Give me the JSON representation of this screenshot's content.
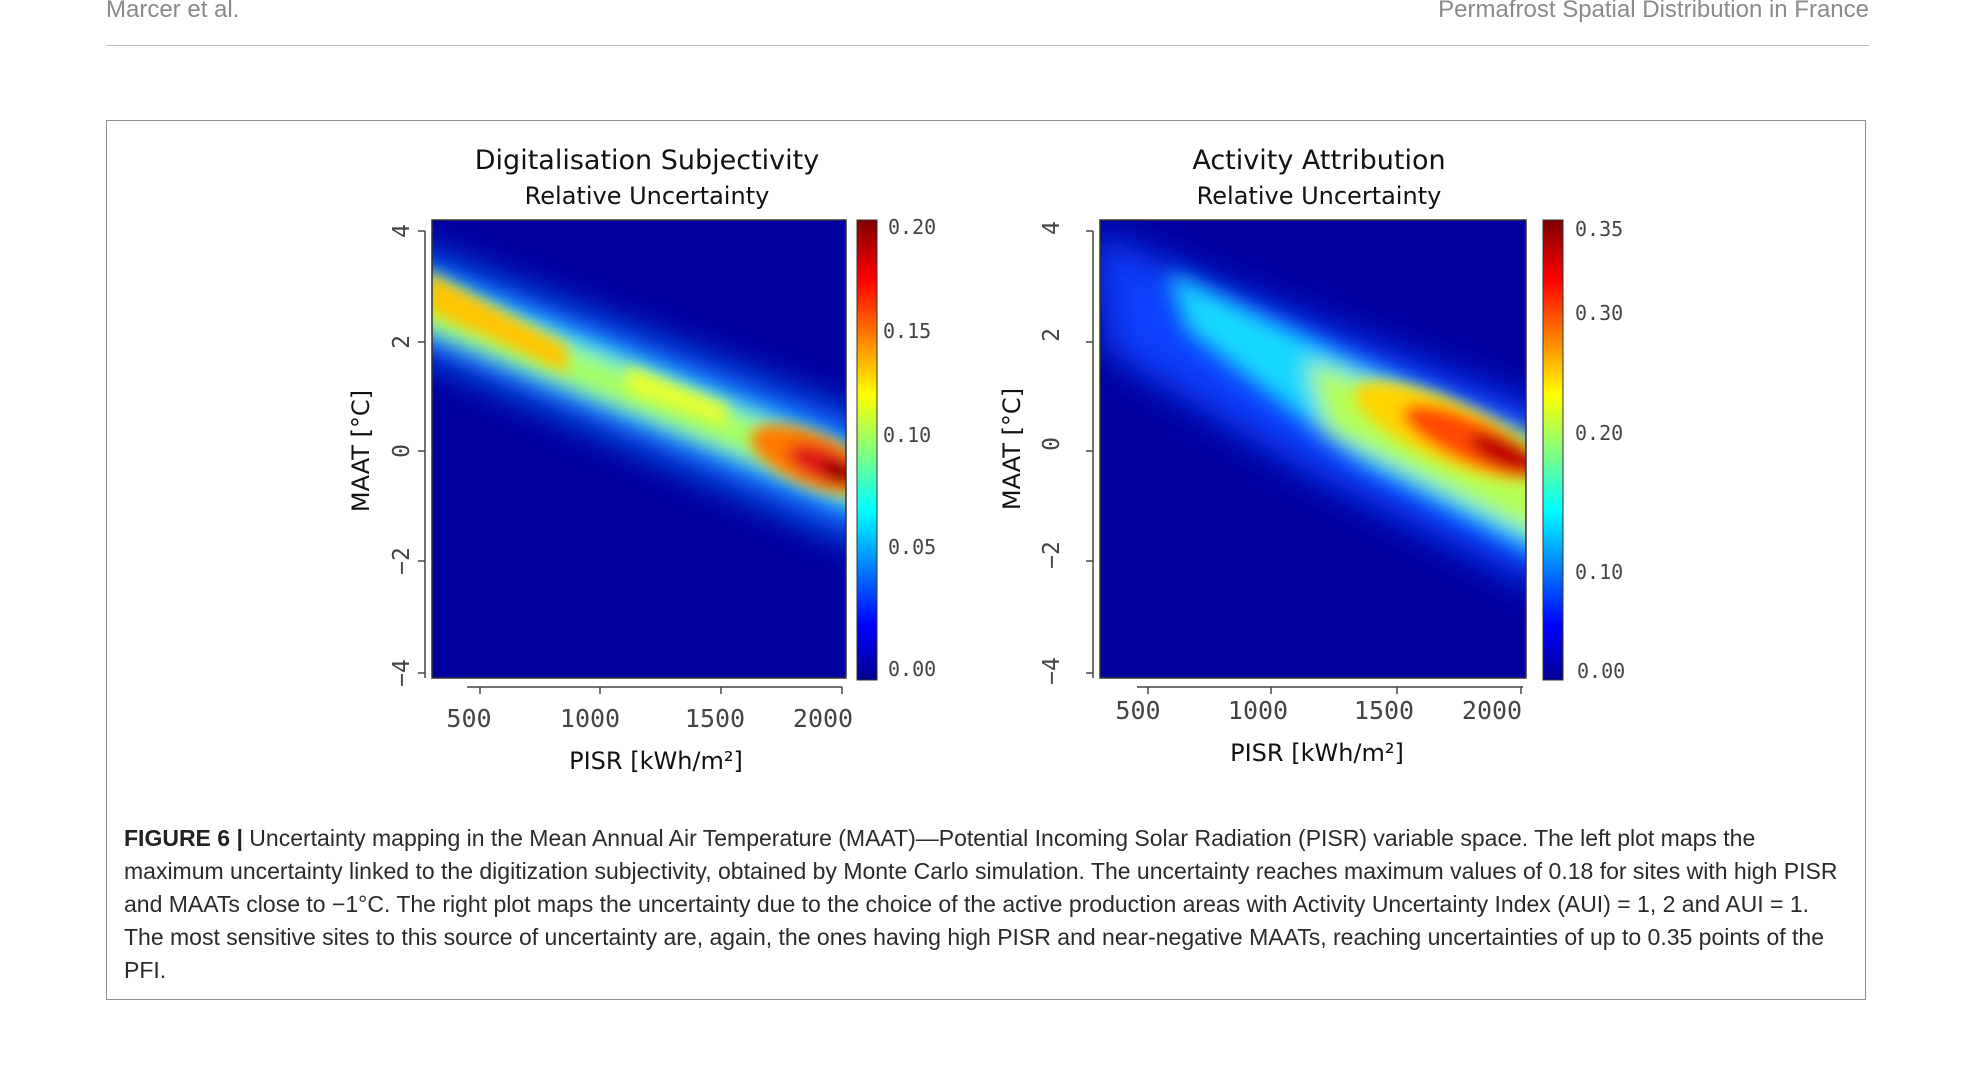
{
  "header": {
    "left": "Marcer et al.",
    "right": "Permafrost Spatial Distribution in France"
  },
  "chart_data": [
    {
      "type": "heatmap",
      "title": "Digitalisation Subjectivity",
      "subtitle": "Relative Uncertainty",
      "xlabel": "PISR [kWh/m²]",
      "ylabel": "MAAT [°C]",
      "xlim": [
        300,
        2000
      ],
      "ylim": [
        -4,
        4
      ],
      "x_ticks": [
        "500",
        "1000",
        "1500",
        "2000"
      ],
      "y_ticks": [
        "−4",
        "−2",
        "0",
        "2",
        "4"
      ],
      "colorbar_ticks": [
        "0.00",
        "0.05",
        "0.10",
        "0.15",
        "0.20"
      ],
      "colorbar_range": [
        0,
        0.2
      ]
    },
    {
      "type": "heatmap",
      "title": "Activity Attribution",
      "subtitle": "Relative Uncertainty",
      "xlabel": "PISR [kWh/m²]",
      "ylabel": "MAAT [°C]",
      "xlim": [
        300,
        2000
      ],
      "ylim": [
        -4,
        4
      ],
      "x_ticks": [
        "500",
        "1000",
        "1500",
        "2000"
      ],
      "y_ticks": [
        "−4",
        "−2",
        "0",
        "2",
        "4"
      ],
      "colorbar_ticks": [
        "0.00",
        "0.10",
        "0.20",
        "0.30",
        "0.35"
      ],
      "colorbar_range": [
        0,
        0.35
      ]
    }
  ],
  "caption": {
    "label": "FIGURE 6 |",
    "text": " Uncertainty mapping in the Mean Annual Air Temperature (MAAT)—Potential Incoming Solar Radiation (PISR) variable space. The left plot maps the maximum uncertainty linked to the digitization subjectivity, obtained by Monte Carlo simulation. The uncertainty reaches maximum values of 0.18 for sites with high PISR and MAATs close to −1°C. The right plot maps the uncertainty due to the choice of the active production areas with Activity Uncertainty Index (AUI) = 1, 2 and AUI = 1. The most sensitive sites to this source of uncertainty are, again, the ones having high PISR and near-negative MAATs, reaching uncertainties of up to 0.35 points of the PFI."
  }
}
